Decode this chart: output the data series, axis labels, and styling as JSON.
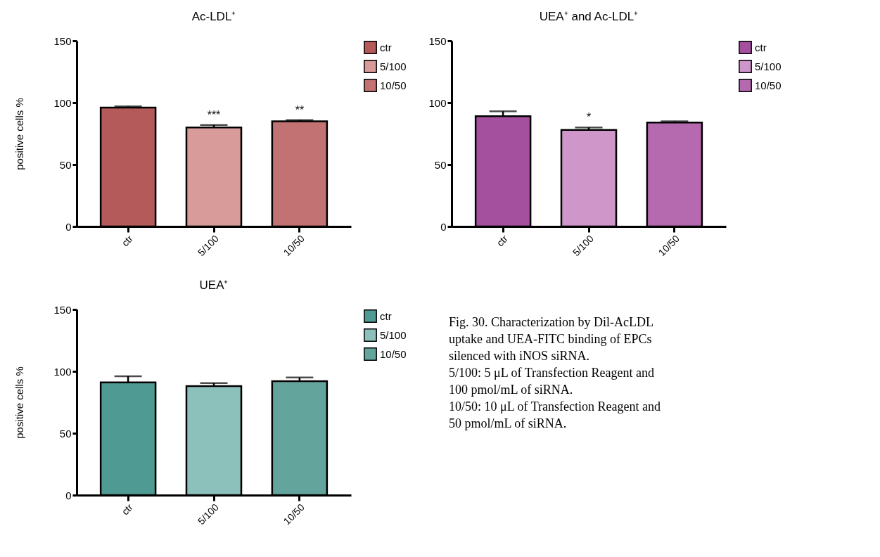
{
  "chart_data": [
    {
      "type": "bar",
      "title": "Ac-LDL⁺",
      "ylabel": "positive cells %",
      "categories": [
        "ctr",
        "5/100",
        "10/50"
      ],
      "ylim": [
        0,
        150
      ],
      "yticks": [
        0,
        50,
        100,
        150
      ],
      "grid": false,
      "legend": "right",
      "series": [
        {
          "name": "ctr",
          "color": "#b45a5a",
          "values": [
            96,
            null,
            null
          ],
          "errors": [
            1,
            null,
            null
          ]
        },
        {
          "name": "5/100",
          "color": "#d99a9a",
          "values": [
            null,
            80,
            null
          ],
          "errors": [
            null,
            2,
            null
          ]
        },
        {
          "name": "10/50",
          "color": "#c27272",
          "values": [
            null,
            null,
            85
          ],
          "errors": [
            null,
            null,
            1
          ]
        }
      ],
      "annotations": [
        {
          "text": "***",
          "x": "5/100",
          "y": 82
        },
        {
          "text": "**",
          "x": "10/50",
          "y": 86
        }
      ]
    },
    {
      "type": "bar",
      "title": "UEA⁺ and Ac-LDL⁺",
      "categories": [
        "ctr",
        "5/100",
        "10/50"
      ],
      "ylim": [
        0,
        150
      ],
      "yticks": [
        0,
        50,
        100,
        150
      ],
      "grid": false,
      "legend": "right",
      "series": [
        {
          "name": "ctr",
          "color": "#a4509e",
          "values": [
            89,
            null,
            null
          ],
          "errors": [
            4,
            null,
            null
          ]
        },
        {
          "name": "5/100",
          "color": "#cf96ca",
          "values": [
            null,
            78,
            null
          ],
          "errors": [
            null,
            2,
            null
          ]
        },
        {
          "name": "10/50",
          "color": "#b56aaf",
          "values": [
            null,
            null,
            84
          ],
          "errors": [
            null,
            null,
            1
          ]
        }
      ],
      "annotations": [
        {
          "text": "*",
          "x": "5/100",
          "y": 80
        }
      ]
    },
    {
      "type": "bar",
      "title": "UEA⁺",
      "ylabel": "positive cells %",
      "categories": [
        "ctr",
        "5/100",
        "10/50"
      ],
      "ylim": [
        0,
        150
      ],
      "yticks": [
        0,
        50,
        100,
        150
      ],
      "grid": false,
      "legend": "right",
      "series": [
        {
          "name": "ctr",
          "color": "#4f9a92",
          "values": [
            91,
            null,
            null
          ],
          "errors": [
            5,
            null,
            null
          ]
        },
        {
          "name": "5/100",
          "color": "#8cc0ba",
          "values": [
            null,
            88,
            null
          ],
          "errors": [
            null,
            2.5,
            null
          ]
        },
        {
          "name": "10/50",
          "color": "#63a59d",
          "values": [
            null,
            null,
            92
          ],
          "errors": [
            null,
            null,
            3
          ]
        }
      ]
    },
    {
      "type": "other",
      "annotations": [
        "Fig. 30. Characterization by Dil-AcLDL uptake and UEA-FITC binding of EPCs silenced with iNOS siRNA.",
        "5/100: 5 μL of Transfection Reagent and 100 pmol/mL of siRNA.",
        "10/50: 10 μL of Transfection Reagent and 50 pmol/mL of siRNA."
      ]
    }
  ]
}
